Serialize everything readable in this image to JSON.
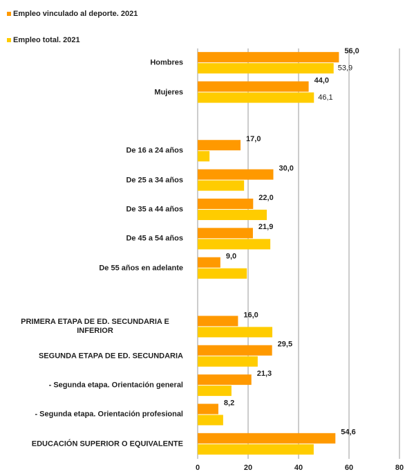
{
  "chart_data": {
    "type": "bar",
    "orientation": "horizontal",
    "categories": [
      "Hombres",
      "Mujeres",
      null,
      "De 16 a 24 años",
      "De 25 a 34 años",
      "De 35 a 44 años",
      "De 45 a 54 años",
      "De 55 años en adelante",
      null,
      "PRIMERA ETAPA DE ED. SECUNDARIA E INFERIOR",
      "SEGUNDA ETAPA DE ED. SECUNDARIA",
      "- Segunda etapa. Orientación general",
      "- Segunda etapa. Orientación profesional",
      "EDUCACIÓN SUPERIOR O EQUIVALENTE"
    ],
    "series": [
      {
        "name": "Empleo vinculado al deporte. 2021",
        "color": "#ff9900",
        "values": [
          56.0,
          44.0,
          null,
          17.0,
          30.0,
          22.0,
          21.9,
          9.0,
          null,
          16.0,
          29.5,
          21.3,
          8.2,
          54.6
        ],
        "value_labels": [
          "56,0",
          "44,0",
          null,
          "17,0",
          "30,0",
          "22,0",
          "21,9",
          "9,0",
          null,
          "16,0",
          "29,5",
          "21,3",
          "8,2",
          "54,6"
        ]
      },
      {
        "name": "Empleo total. 2021",
        "color": "#ffcc00",
        "values": [
          53.9,
          46.1,
          null,
          4.7,
          18.4,
          27.4,
          28.8,
          19.5,
          null,
          29.6,
          23.8,
          13.4,
          10.1,
          46.0
        ],
        "value_labels": [
          "53,9",
          "46,1",
          null,
          null,
          null,
          null,
          null,
          null,
          null,
          null,
          null,
          null,
          null,
          null
        ]
      }
    ],
    "xlim": [
      0,
      80
    ],
    "xticks": [
      0,
      20,
      40,
      60,
      80
    ],
    "grid": true,
    "legend": "top-left"
  }
}
